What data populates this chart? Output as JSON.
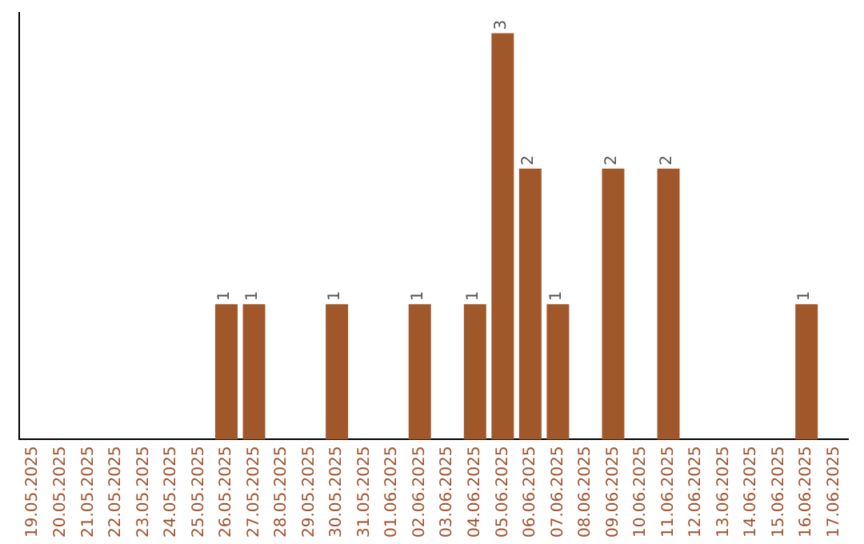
{
  "chart_data": {
    "type": "bar",
    "categories": [
      "19.05.2025",
      "20.05.2025",
      "21.05.2025",
      "22.05.2025",
      "23.05.2025",
      "24.05.2025",
      "25.05.2025",
      "26.05.2025",
      "27.05.2025",
      "28.05.2025",
      "29.05.2025",
      "30.05.2025",
      "31.05.2025",
      "01.06.2025",
      "02.06.2025",
      "03.06.2025",
      "04.06.2025",
      "05.06.2025",
      "06.06.2025",
      "07.06.2025",
      "08.06.2025",
      "09.06.2025",
      "10.06.2025",
      "11.06.2025",
      "12.06.2025",
      "13.06.2025",
      "14.06.2025",
      "15.06.2025",
      "16.06.2025",
      "17.06.2025"
    ],
    "values": [
      0,
      0,
      0,
      0,
      0,
      0,
      0,
      1,
      1,
      0,
      0,
      1,
      0,
      0,
      1,
      0,
      1,
      3,
      2,
      1,
      0,
      2,
      0,
      2,
      0,
      0,
      0,
      0,
      1,
      0
    ],
    "value_labels": [
      null,
      null,
      null,
      null,
      null,
      null,
      null,
      "1",
      "1",
      null,
      null,
      "1",
      null,
      null,
      "1",
      null,
      "1",
      "3",
      "2",
      "1",
      null,
      "2",
      null,
      "2",
      null,
      null,
      null,
      null,
      "1",
      null
    ],
    "color": "#a0582a",
    "grid": false,
    "tick_labels": "x"
  }
}
